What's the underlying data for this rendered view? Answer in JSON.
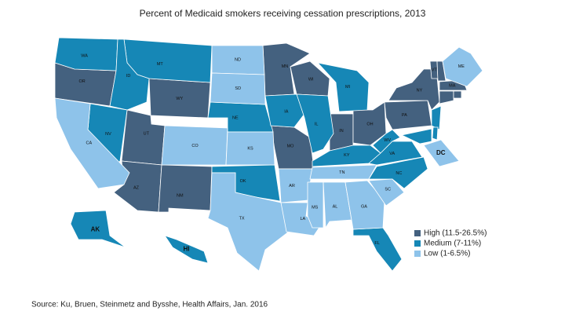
{
  "title": "Percent of Medicaid smokers receiving cessation prescriptions, 2013",
  "source": "Source: Ku, Bruen, Steinmetz and Bysshe, Health Affairs, Jan. 2016",
  "legend": [
    {
      "label": "High (11.5-26.5%)",
      "color": "#44617f",
      "states": [
        "OR",
        "WY",
        "UT",
        "AZ",
        "NM",
        "MN",
        "WI",
        "MO",
        "IN",
        "OH",
        "PA",
        "NY",
        "VT",
        "MA",
        null,
        null,
        null
      ]
    },
    {
      "label": "Medium (7-11%)",
      "color": "#1687b6",
      "states": [
        "WA",
        "MT",
        "ID",
        "NV",
        "NE",
        "IA",
        "IL",
        "MI",
        "KY",
        "WV",
        "VA",
        "NC",
        "OK",
        "FL",
        "AK",
        "HI",
        null,
        null,
        null
      ]
    },
    {
      "label": "Low (1-6.5%)",
      "color": "#8ec3ea",
      "states": [
        "CA",
        "CO",
        "KS",
        "ND",
        "SD",
        "TX",
        "AR",
        "LA",
        "MS",
        "AL",
        "GA",
        "SC",
        "TN",
        "ME",
        "DC"
      ]
    }
  ]
}
